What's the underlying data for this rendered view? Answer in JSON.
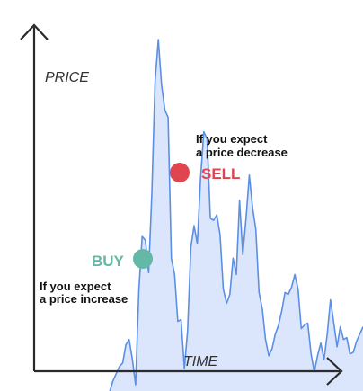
{
  "chart_data": {
    "type": "area",
    "title": "",
    "xlabel": "TIME",
    "ylabel": "PRICE",
    "grid": false,
    "legend": "none",
    "x": [
      0,
      1,
      2,
      3,
      4,
      5,
      6,
      7,
      8,
      9,
      10,
      11,
      12,
      13,
      14,
      15,
      16,
      17,
      18,
      19,
      20,
      21,
      22,
      23,
      24,
      25,
      26,
      27,
      28,
      29,
      30,
      31,
      32,
      33,
      34,
      35,
      36,
      37,
      38,
      39,
      40,
      41,
      42,
      43,
      44,
      45,
      46,
      47,
      48,
      49,
      50,
      51,
      52,
      53,
      54,
      55,
      56,
      57,
      58,
      59,
      60,
      61,
      62,
      63,
      64,
      65,
      66,
      67,
      68,
      69,
      70,
      71,
      72,
      73,
      74,
      75,
      76,
      77,
      78
    ],
    "series": [
      {
        "values": [
          0.0,
          3.0,
          5.0,
          7.0,
          8.0,
          13.0,
          14.5,
          9.0,
          2.0,
          28.0,
          43.0,
          42.0,
          33.0,
          55.0,
          86.0,
          97.5,
          85.0,
          78.0,
          76.0,
          37.0,
          32.5,
          19.5,
          20.0,
          6.5,
          17.0,
          40.0,
          46.0,
          41.0,
          59.0,
          72.0,
          70.0,
          48.0,
          47.5,
          49.0,
          43.5,
          28.5,
          24.5,
          27.0,
          37.0,
          32.5,
          53.0,
          38.0,
          48.0,
          60.0,
          51.0,
          45.0,
          27.5,
          23.0,
          14.5,
          10.0,
          12.0,
          16.0,
          18.5,
          22.5,
          27.5,
          27.0,
          29.0,
          32.5,
          28.5,
          17.5,
          18.5,
          19.0,
          10.5,
          5.5,
          10.0,
          13.5,
          9.0,
          16.0,
          25.5,
          19.0,
          12.5,
          18.0,
          14.5,
          15.0,
          10.5,
          11.0,
          14.0,
          16.0,
          18.0
        ]
      }
    ],
    "ylim": [
      0,
      100
    ]
  },
  "labels": {
    "buy": "BUY",
    "sell": "SELL",
    "buy_note": [
      "If you expect",
      "a price increase"
    ],
    "sell_note": [
      "If you expect",
      "a price decrease"
    ]
  },
  "colors": {
    "line": "#5b8fe6",
    "fill": "#dbe5fb",
    "buy": "#63b8a6",
    "sell": "#e0444f",
    "axis": "#2b2b2b"
  }
}
